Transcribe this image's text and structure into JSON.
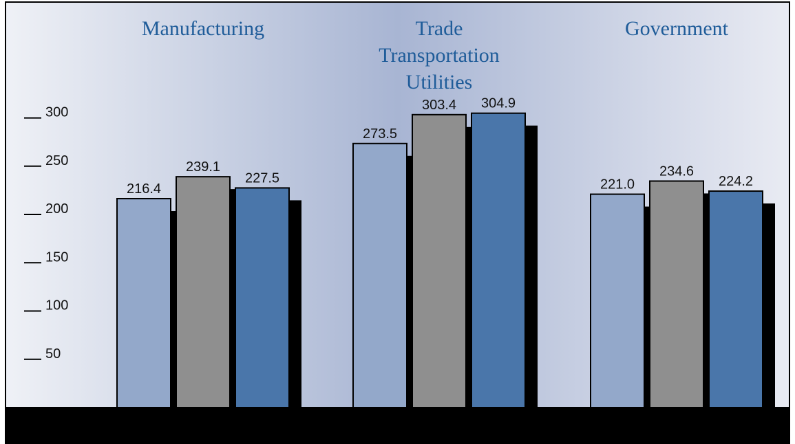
{
  "chart_data": {
    "type": "bar",
    "categories": [
      "Manufacturing",
      "Trade\nTransportation\nUtilities",
      "Government"
    ],
    "series": [
      {
        "color": "#93a8ca",
        "values": [
          216.4,
          273.5,
          221.0
        ],
        "value_labels": [
          "216.4",
          "273.5",
          "221.0"
        ]
      },
      {
        "color": "#8f8f8f",
        "values": [
          239.1,
          303.4,
          234.6
        ],
        "value_labels": [
          "239.1",
          "303.4",
          "234.6"
        ]
      },
      {
        "color": "#4a76aa",
        "values": [
          227.5,
          304.9,
          224.2
        ],
        "value_labels": [
          "227.5",
          "304.9",
          "224.2"
        ]
      }
    ],
    "ylim": [
      0,
      420
    ],
    "yticks": [
      50,
      100,
      150,
      200,
      250,
      300
    ],
    "grid": false
  }
}
